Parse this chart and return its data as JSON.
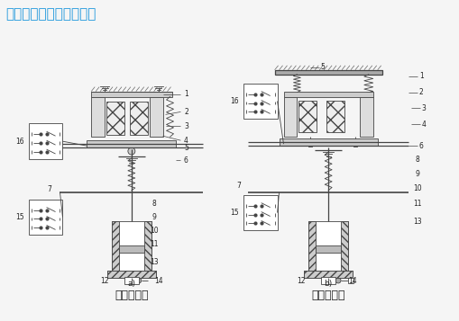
{
  "title_text": "时间继电器结构图如下：",
  "label_a": "a)",
  "label_b": "b)",
  "caption_a": "通电延时型",
  "caption_b": "断电延时型",
  "title_color": "#2299dd",
  "bg_color": "#f0f0f0",
  "line_color": "#444444",
  "text_color": "#222222",
  "title_fontsize": 11,
  "caption_fontsize": 9,
  "fig_width": 5.1,
  "fig_height": 3.57,
  "dpi": 100
}
